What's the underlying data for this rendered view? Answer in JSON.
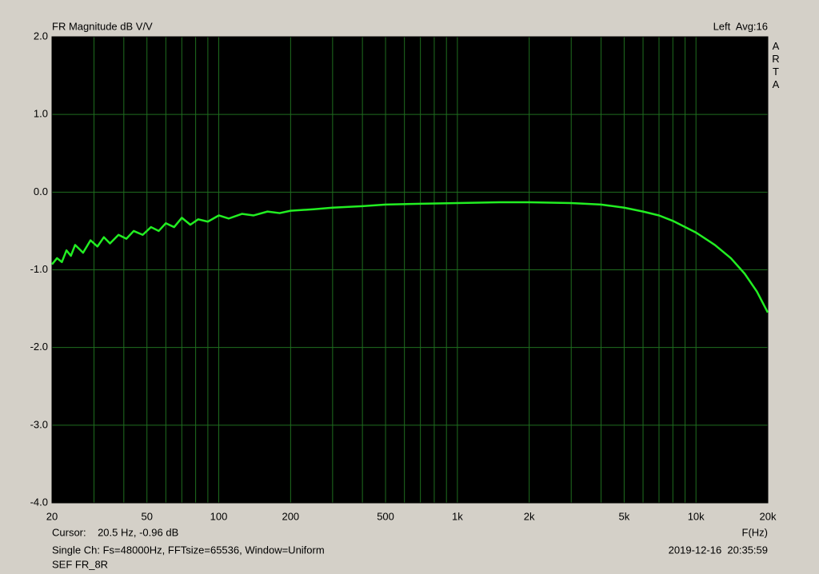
{
  "chart_data": {
    "type": "line",
    "title": "FR Magnitude dB V/V",
    "channel_info": "Left  Avg:16",
    "watermark": "ARTA",
    "cursor": "Cursor:    20.5 Hz, -0.96 dB",
    "x_label": "F(Hz)",
    "settings": "Single Ch: Fs=48000Hz, FFTsize=65536, Window=Uniform",
    "timestamp": "2019-12-16  20:35:59",
    "file_name": "SEF FR_8R",
    "xscale": "log",
    "grid": true,
    "xlim": [
      20,
      20000
    ],
    "ylim": [
      -4,
      2
    ],
    "xticks": [
      20,
      50,
      100,
      200,
      500,
      {
        "value": 1000,
        "label": "1k"
      },
      {
        "value": 2000,
        "label": "2k"
      },
      {
        "value": 5000,
        "label": "5k"
      },
      {
        "value": 10000,
        "label": "10k"
      },
      {
        "value": 20000,
        "label": "20k"
      }
    ],
    "x_minor_gridlines": [
      30,
      40,
      60,
      70,
      80,
      90,
      300,
      400,
      600,
      700,
      800,
      900,
      3000,
      4000,
      6000,
      7000,
      8000,
      9000
    ],
    "yticks": [
      {
        "value": 2,
        "label": "2.0"
      },
      {
        "value": 1,
        "label": "1.0"
      },
      {
        "value": 0,
        "label": "0.0"
      },
      {
        "value": -1,
        "label": "-1.0"
      },
      {
        "value": -2,
        "label": "-2.0"
      },
      {
        "value": -3,
        "label": "-3.0"
      },
      {
        "value": -4,
        "label": "-4.0"
      }
    ],
    "series": [
      {
        "color": "#22ee22",
        "x": [
          20,
          21,
          22,
          23,
          24,
          25,
          27,
          29,
          31,
          33,
          35,
          38,
          41,
          44,
          48,
          52,
          56,
          60,
          65,
          70,
          76,
          82,
          90,
          100,
          110,
          125,
          140,
          160,
          180,
          200,
          250,
          300,
          400,
          500,
          700,
          1000,
          1500,
          2000,
          3000,
          4000,
          5000,
          6000,
          7000,
          8000,
          10000,
          12000,
          14000,
          16000,
          18000,
          20000
        ],
        "values": [
          -0.93,
          -0.85,
          -0.9,
          -0.75,
          -0.82,
          -0.68,
          -0.78,
          -0.62,
          -0.7,
          -0.58,
          -0.66,
          -0.55,
          -0.6,
          -0.5,
          -0.55,
          -0.45,
          -0.5,
          -0.4,
          -0.45,
          -0.33,
          -0.42,
          -0.35,
          -0.38,
          -0.3,
          -0.34,
          -0.28,
          -0.3,
          -0.25,
          -0.27,
          -0.24,
          -0.22,
          -0.2,
          -0.18,
          -0.16,
          -0.15,
          -0.14,
          -0.13,
          -0.13,
          -0.14,
          -0.16,
          -0.2,
          -0.25,
          -0.3,
          -0.37,
          -0.52,
          -0.68,
          -0.85,
          -1.05,
          -1.28,
          -1.55
        ]
      }
    ]
  }
}
